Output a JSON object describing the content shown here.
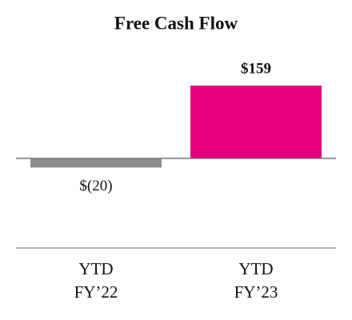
{
  "chart_data": {
    "type": "bar",
    "title": "Free Cash Flow",
    "categories": [
      "YTD FY’22",
      "YTD FY’23"
    ],
    "values": [
      -20,
      159
    ],
    "value_labels": [
      "$(20)",
      "$159"
    ],
    "colors": [
      "#8c8c8c",
      "#e4007f"
    ]
  }
}
